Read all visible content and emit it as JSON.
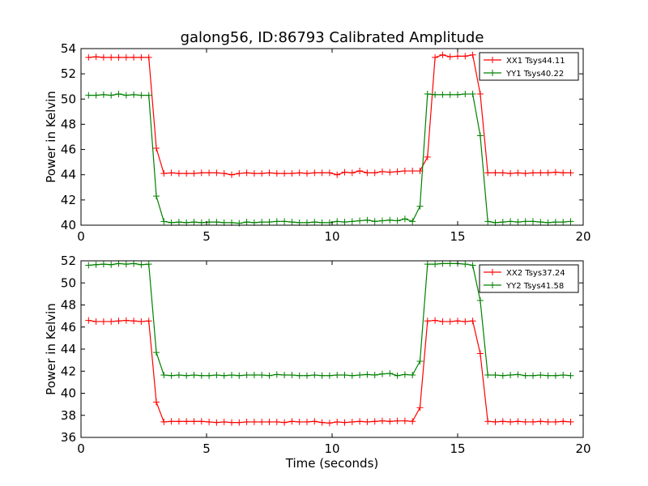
{
  "figure": {
    "title": "galong56, ID:86793 Calibrated Amplitude",
    "colors": {
      "xx": "#ff0000",
      "yy": "#008000"
    }
  },
  "chart_data": [
    {
      "type": "line",
      "title": "galong56, ID:86793 Calibrated Amplitude",
      "xlabel": "",
      "ylabel": "Power in Kelvin",
      "xlim": [
        0,
        20
      ],
      "ylim": [
        40,
        54
      ],
      "xticks": [
        0,
        5,
        10,
        15,
        20
      ],
      "yticks": [
        40,
        42,
        44,
        46,
        48,
        50,
        52,
        54
      ],
      "grid": false,
      "legend": "top-right",
      "series": [
        {
          "name": "XX1 Tsys44.11",
          "color": "#ff0000",
          "marker": "+",
          "x": [
            0.3,
            0.6,
            0.9,
            1.2,
            1.5,
            1.8,
            2.1,
            2.4,
            2.7,
            3.0,
            3.3,
            3.6,
            3.9,
            4.2,
            4.5,
            4.8,
            5.1,
            5.4,
            5.7,
            6.0,
            6.3,
            6.6,
            6.9,
            7.2,
            7.5,
            7.8,
            8.1,
            8.4,
            8.7,
            9.0,
            9.3,
            9.6,
            9.9,
            10.2,
            10.5,
            10.8,
            11.1,
            11.4,
            11.7,
            12.0,
            12.3,
            12.6,
            12.9,
            13.2,
            13.5,
            13.8,
            14.1,
            14.4,
            14.7,
            15.0,
            15.3,
            15.6,
            15.9,
            16.2,
            16.5,
            16.8,
            17.1,
            17.4,
            17.7,
            18.0,
            18.3,
            18.6,
            18.9,
            19.2,
            19.5
          ],
          "y": [
            53.3,
            53.35,
            53.3,
            53.3,
            53.3,
            53.3,
            53.3,
            53.3,
            53.3,
            46.1,
            44.1,
            44.15,
            44.1,
            44.1,
            44.1,
            44.15,
            44.15,
            44.15,
            44.1,
            44.0,
            44.1,
            44.15,
            44.1,
            44.1,
            44.15,
            44.1,
            44.1,
            44.1,
            44.15,
            44.1,
            44.15,
            44.15,
            44.15,
            44.0,
            44.2,
            44.15,
            44.3,
            44.15,
            44.15,
            44.25,
            44.2,
            44.25,
            44.3,
            44.3,
            44.3,
            45.4,
            53.3,
            53.5,
            53.35,
            53.4,
            53.4,
            53.5,
            50.4,
            44.15,
            44.15,
            44.15,
            44.1,
            44.15,
            44.1,
            44.15,
            44.15,
            44.15,
            44.2,
            44.15,
            44.15
          ]
        },
        {
          "name": "YY1 Tsys40.22",
          "color": "#008000",
          "marker": "+",
          "x": [
            0.3,
            0.6,
            0.9,
            1.2,
            1.5,
            1.8,
            2.1,
            2.4,
            2.7,
            3.0,
            3.3,
            3.6,
            3.9,
            4.2,
            4.5,
            4.8,
            5.1,
            5.4,
            5.7,
            6.0,
            6.3,
            6.6,
            6.9,
            7.2,
            7.5,
            7.8,
            8.1,
            8.4,
            8.7,
            9.0,
            9.3,
            9.6,
            9.9,
            10.2,
            10.5,
            10.8,
            11.1,
            11.4,
            11.7,
            12.0,
            12.3,
            12.6,
            12.9,
            13.2,
            13.5,
            13.8,
            14.1,
            14.4,
            14.7,
            15.0,
            15.3,
            15.6,
            15.9,
            16.2,
            16.5,
            16.8,
            17.1,
            17.4,
            17.7,
            18.0,
            18.3,
            18.6,
            18.9,
            19.2,
            19.5
          ],
          "y": [
            50.3,
            50.3,
            50.35,
            50.3,
            50.4,
            50.3,
            50.35,
            50.3,
            50.3,
            42.3,
            40.3,
            40.2,
            40.25,
            40.2,
            40.25,
            40.2,
            40.25,
            40.25,
            40.2,
            40.2,
            40.15,
            40.25,
            40.2,
            40.25,
            40.25,
            40.3,
            40.3,
            40.25,
            40.2,
            40.2,
            40.25,
            40.2,
            40.2,
            40.3,
            40.25,
            40.3,
            40.35,
            40.4,
            40.3,
            40.35,
            40.4,
            40.35,
            40.5,
            40.3,
            41.5,
            50.4,
            50.35,
            50.35,
            50.35,
            50.35,
            50.4,
            50.4,
            47.1,
            40.3,
            40.2,
            40.25,
            40.3,
            40.25,
            40.3,
            40.3,
            40.25,
            40.2,
            40.25,
            40.25,
            40.3
          ]
        }
      ]
    },
    {
      "type": "line",
      "title": "",
      "xlabel": "Time (seconds)",
      "ylabel": "Power in Kelvin",
      "xlim": [
        0,
        20
      ],
      "ylim": [
        36,
        52
      ],
      "xticks": [
        0,
        5,
        10,
        15,
        20
      ],
      "yticks": [
        36,
        38,
        40,
        42,
        44,
        46,
        48,
        50,
        52
      ],
      "grid": false,
      "legend": "top-right",
      "series": [
        {
          "name": "XX2 Tsys37.24",
          "color": "#ff0000",
          "marker": "+",
          "x": [
            0.3,
            0.6,
            0.9,
            1.2,
            1.5,
            1.8,
            2.1,
            2.4,
            2.7,
            3.0,
            3.3,
            3.6,
            3.9,
            4.2,
            4.5,
            4.8,
            5.1,
            5.4,
            5.7,
            6.0,
            6.3,
            6.6,
            6.9,
            7.2,
            7.5,
            7.8,
            8.1,
            8.4,
            8.7,
            9.0,
            9.3,
            9.6,
            9.9,
            10.2,
            10.5,
            10.8,
            11.1,
            11.4,
            11.7,
            12.0,
            12.3,
            12.6,
            12.9,
            13.2,
            13.5,
            13.8,
            14.1,
            14.4,
            14.7,
            15.0,
            15.3,
            15.6,
            15.9,
            16.2,
            16.5,
            16.8,
            17.1,
            17.4,
            17.7,
            18.0,
            18.3,
            18.6,
            18.9,
            19.2,
            19.5
          ],
          "y": [
            46.6,
            46.5,
            46.5,
            46.5,
            46.55,
            46.6,
            46.55,
            46.5,
            46.55,
            39.2,
            37.4,
            37.45,
            37.45,
            37.45,
            37.45,
            37.45,
            37.4,
            37.35,
            37.4,
            37.35,
            37.35,
            37.4,
            37.4,
            37.4,
            37.4,
            37.4,
            37.35,
            37.45,
            37.4,
            37.4,
            37.45,
            37.35,
            37.3,
            37.4,
            37.35,
            37.4,
            37.45,
            37.4,
            37.45,
            37.5,
            37.45,
            37.5,
            37.5,
            37.45,
            38.7,
            46.55,
            46.6,
            46.5,
            46.5,
            46.55,
            46.5,
            46.55,
            43.6,
            37.45,
            37.4,
            37.45,
            37.4,
            37.45,
            37.4,
            37.4,
            37.45,
            37.4,
            37.4,
            37.45,
            37.4
          ]
        },
        {
          "name": "YY2 Tsys41.58",
          "color": "#008000",
          "marker": "+",
          "x": [
            0.3,
            0.6,
            0.9,
            1.2,
            1.5,
            1.8,
            2.1,
            2.4,
            2.7,
            3.0,
            3.3,
            3.6,
            3.9,
            4.2,
            4.5,
            4.8,
            5.1,
            5.4,
            5.7,
            6.0,
            6.3,
            6.6,
            6.9,
            7.2,
            7.5,
            7.8,
            8.1,
            8.4,
            8.7,
            9.0,
            9.3,
            9.6,
            9.9,
            10.2,
            10.5,
            10.8,
            11.1,
            11.4,
            11.7,
            12.0,
            12.3,
            12.6,
            12.9,
            13.2,
            13.5,
            13.8,
            14.1,
            14.4,
            14.7,
            15.0,
            15.3,
            15.6,
            15.9,
            16.2,
            16.5,
            16.8,
            17.1,
            17.4,
            17.7,
            18.0,
            18.3,
            18.6,
            18.9,
            19.2,
            19.5
          ],
          "y": [
            51.6,
            51.65,
            51.7,
            51.65,
            51.75,
            51.7,
            51.75,
            51.65,
            51.7,
            43.7,
            41.65,
            41.6,
            41.65,
            41.6,
            41.65,
            41.6,
            41.6,
            41.65,
            41.6,
            41.65,
            41.6,
            41.65,
            41.65,
            41.65,
            41.6,
            41.7,
            41.65,
            41.65,
            41.6,
            41.6,
            41.65,
            41.6,
            41.6,
            41.65,
            41.65,
            41.6,
            41.65,
            41.7,
            41.65,
            41.75,
            41.8,
            41.6,
            41.7,
            41.65,
            42.9,
            51.7,
            51.7,
            51.75,
            51.75,
            51.75,
            51.7,
            51.6,
            48.4,
            41.65,
            41.65,
            41.6,
            41.65,
            41.7,
            41.6,
            41.6,
            41.65,
            41.6,
            41.6,
            41.65,
            41.6
          ]
        }
      ]
    }
  ]
}
